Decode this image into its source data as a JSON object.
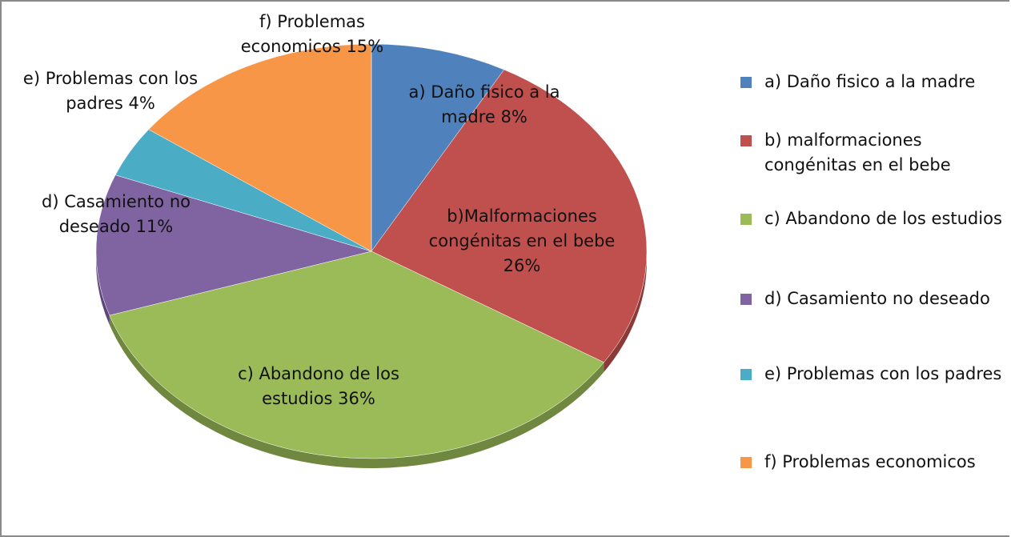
{
  "chart_data": {
    "type": "pie",
    "categories": [
      "a) Daño fisico a la madre",
      "b) malformaciones congénitas en el bebe",
      "c) Abandono de los estudios",
      "d) Casamiento no deseado",
      "e) Problemas con los padres",
      "f) Problemas economicos"
    ],
    "slice_labels": [
      "a) Daño fisico a la madre",
      "b)Malformaciones congénitas en el bebe",
      "c) Abandono de los estudios",
      "d) Casamiento no deseado",
      "e) Problemas con los padres",
      "f) Problemas economicos"
    ],
    "values": [
      8,
      26,
      36,
      11,
      4,
      15
    ],
    "value_labels": [
      "8%",
      "26%",
      "36%",
      "11%",
      "4%",
      "15%"
    ],
    "colors": [
      "#4f81bd",
      "#c0504d",
      "#9bbb59",
      "#8064a2",
      "#4bacc6",
      "#f79646"
    ],
    "legend": "right"
  }
}
